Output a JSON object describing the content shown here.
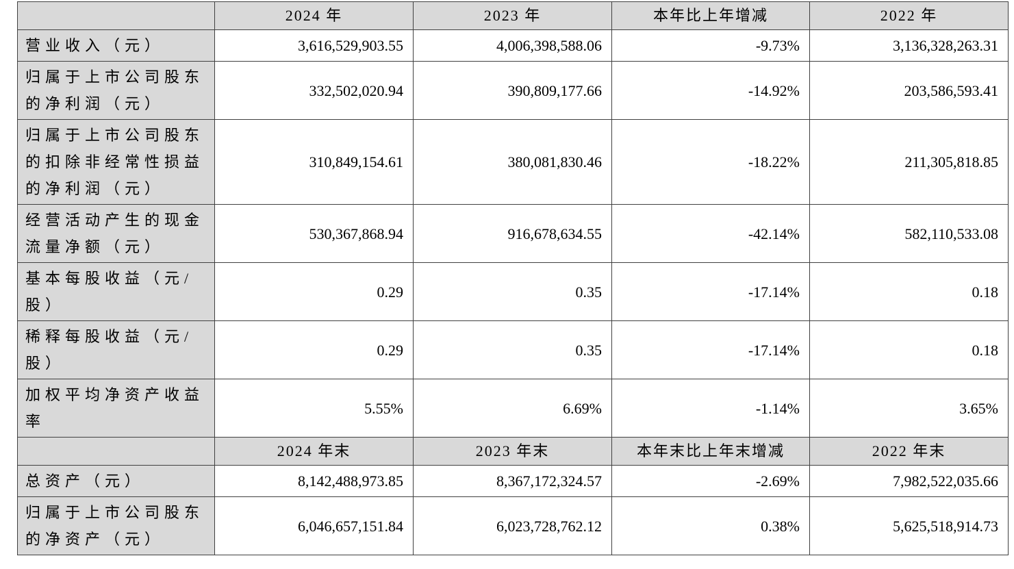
{
  "colors": {
    "header_bg": "#d9d9d9",
    "label_bg": "#d9d9d9",
    "value_bg": "#ffffff",
    "border": "#404040",
    "text": "#000000"
  },
  "table": {
    "sections": [
      {
        "header": {
          "label": "",
          "cols": [
            "2024 年",
            "2023 年",
            "本年比上年增减",
            "2022 年"
          ]
        },
        "rows": [
          {
            "label": "营业收入（元）",
            "values": [
              "3,616,529,903.55",
              "4,006,398,588.06",
              "-9.73%",
              "3,136,328,263.31"
            ]
          },
          {
            "label": "归属于上市公司股东\n的净利润（元）",
            "values": [
              "332,502,020.94",
              "390,809,177.66",
              "-14.92%",
              "203,586,593.41"
            ]
          },
          {
            "label": "归属于上市公司股东\n的扣除非经常性损益\n的净利润（元）",
            "values": [
              "310,849,154.61",
              "380,081,830.46",
              "-18.22%",
              "211,305,818.85"
            ]
          },
          {
            "label": "经营活动产生的现金\n流量净额（元）",
            "values": [
              "530,367,868.94",
              "916,678,634.55",
              "-42.14%",
              "582,110,533.08"
            ]
          },
          {
            "label": "基本每股收益（元/\n股）",
            "values": [
              "0.29",
              "0.35",
              "-17.14%",
              "0.18"
            ]
          },
          {
            "label": "稀释每股收益（元/\n股）",
            "values": [
              "0.29",
              "0.35",
              "-17.14%",
              "0.18"
            ]
          },
          {
            "label": "加权平均净资产收益\n率",
            "values": [
              "5.55%",
              "6.69%",
              "-1.14%",
              "3.65%"
            ]
          }
        ]
      },
      {
        "header": {
          "label": "",
          "cols": [
            "2024 年末",
            "2023 年末",
            "本年末比上年末增减",
            "2022 年末"
          ]
        },
        "rows": [
          {
            "label": "总资产（元）",
            "values": [
              "8,142,488,973.85",
              "8,367,172,324.57",
              "-2.69%",
              "7,982,522,035.66"
            ]
          },
          {
            "label": "归属于上市公司股东\n的净资产（元）",
            "values": [
              "6,046,657,151.84",
              "6,023,728,762.12",
              "0.38%",
              "5,625,518,914.73"
            ]
          }
        ]
      }
    ]
  }
}
